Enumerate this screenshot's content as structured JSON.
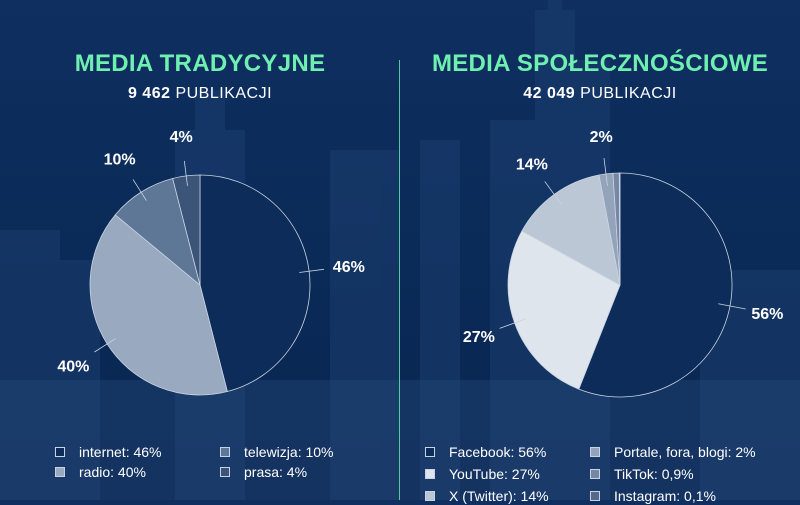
{
  "chart_data": [
    {
      "type": "pie",
      "title": "MEDIA TRADYCYJNE",
      "subtitle_count": "9 462",
      "subtitle_unit": "PUBLIKACJI",
      "slices": [
        {
          "name": "internet",
          "value": 46,
          "label": "46%",
          "legend": "internet: 46%",
          "color": "#0d2c5a"
        },
        {
          "name": "radio",
          "value": 40,
          "label": "40%",
          "legend": "radio: 40%",
          "color": "#98a9c0"
        },
        {
          "name": "telewizja",
          "value": 10,
          "label": "10%",
          "legend": "telewizja: 10%",
          "color": "#5f7797"
        },
        {
          "name": "prasa",
          "value": 4,
          "label": "4%",
          "legend": "prasa: 4%",
          "color": "#3b5478"
        }
      ]
    },
    {
      "type": "pie",
      "title": "MEDIA SPOŁECZNOŚCIOWE",
      "subtitle_count": "42 049",
      "subtitle_unit": "PUBLIKACJI",
      "slices": [
        {
          "name": "Facebook",
          "value": 56,
          "label": "56%",
          "legend": "Facebook: 56%",
          "color": "#0d2c5a"
        },
        {
          "name": "YouTube",
          "value": 27,
          "label": "27%",
          "legend": "YouTube: 27%",
          "color": "#dfe5ec"
        },
        {
          "name": "X (Twitter)",
          "value": 14,
          "label": "14%",
          "legend": "X (Twitter): 14%",
          "color": "#bcc7d5"
        },
        {
          "name": "Portale, fora, blogi",
          "value": 2,
          "label": "2%",
          "legend": "Portale, fora, blogi: 2%",
          "color": "#93a3ba"
        },
        {
          "name": "TikTok",
          "value": 0.9,
          "label": "",
          "legend": "TikTok: 0,9%",
          "color": "#7587a3"
        },
        {
          "name": "Instagram",
          "value": 0.1,
          "label": "",
          "legend": "Instagram: 0,1%",
          "color": "#56698a"
        }
      ]
    }
  ]
}
